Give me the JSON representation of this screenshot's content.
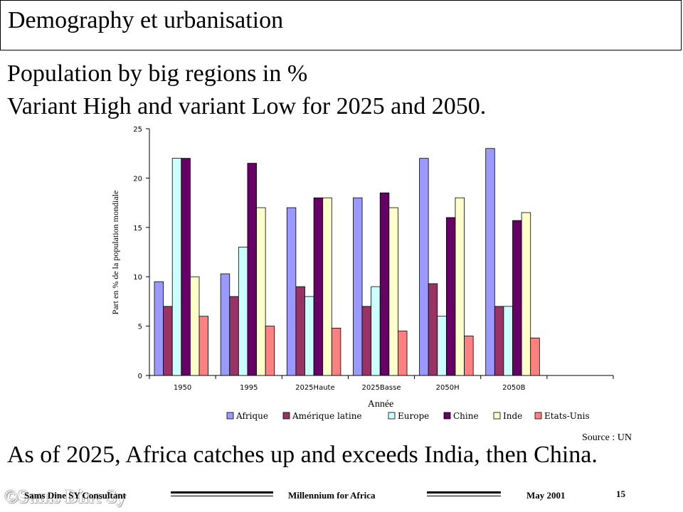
{
  "slide": {
    "title": "Demography et urbanisation",
    "subtitle_line1": "Population by  big regions in %",
    "subtitle_line2": "Variant High and variant Low for 2025 and 2050.",
    "source": "Source : UN",
    "conclusion": "As of 2025, Africa catches up and exceeds India, then China."
  },
  "footer": {
    "author": "Sams Dine SY Consultant",
    "program": "Millennium  for Africa",
    "date": "May 2001",
    "page": "15",
    "watermark": "©Sams Dine Sy"
  },
  "chart_data": {
    "type": "bar",
    "categories": [
      "1950",
      "1995",
      "2025Haute",
      "2025Basse",
      "2050H",
      "2050B",
      ""
    ],
    "series": [
      {
        "name": "Afrique",
        "color": "#9999FF",
        "values": [
          9.5,
          10.3,
          17,
          18,
          22,
          23,
          null
        ]
      },
      {
        "name": "Amérique latine",
        "color": "#993366",
        "values": [
          7,
          8,
          9,
          7,
          9.3,
          7,
          null
        ]
      },
      {
        "name": "Europe",
        "color": "#CCFFFF",
        "values": [
          22,
          13,
          8,
          9,
          6,
          7,
          null
        ]
      },
      {
        "name": "Chine",
        "color": "#660066",
        "values": [
          22,
          21.5,
          18,
          18.5,
          16,
          15.7,
          null
        ]
      },
      {
        "name": "Inde",
        "color": "#FFFFCC",
        "values": [
          10,
          17,
          18,
          17,
          18,
          16.5,
          null
        ]
      },
      {
        "name": "Etats-Unis",
        "color": "#FF8080",
        "values": [
          6,
          5,
          4.8,
          4.5,
          4,
          3.8,
          null
        ]
      }
    ],
    "ylim": [
      0,
      25
    ],
    "yticks": [
      0,
      5,
      10,
      15,
      20,
      25
    ],
    "xlabel": "Année",
    "ylabel": "Part en % de la population mondiale",
    "legend_position": "bottom",
    "grid": false
  }
}
